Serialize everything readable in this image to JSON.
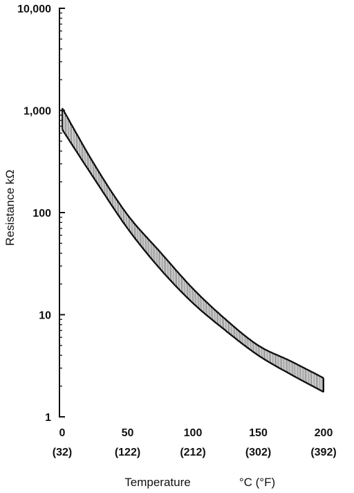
{
  "chart_data": {
    "type": "area",
    "scale": {
      "y": "log"
    },
    "xlim": [
      0,
      200
    ],
    "ylim": [
      1,
      10000
    ],
    "grid": false,
    "xlabel": "Temperature",
    "xunit": "°C (°F)",
    "ylabel": "Resistance kΩ",
    "x_ticks": [
      {
        "c": "0",
        "f": "(32)"
      },
      {
        "c": "50",
        "f": "(122)"
      },
      {
        "c": "100",
        "f": "(212)"
      },
      {
        "c": "150",
        "f": "(302)"
      },
      {
        "c": "200",
        "f": "(392)"
      }
    ],
    "y_ticks": [
      {
        "value": 1,
        "label": "1"
      },
      {
        "value": 10,
        "label": "10"
      },
      {
        "value": 100,
        "label": "100"
      },
      {
        "value": 1000,
        "label": "1,000"
      },
      {
        "value": 10000,
        "label": "10,000"
      }
    ],
    "band": {
      "x": [
        0,
        25,
        50,
        75,
        100,
        125,
        150,
        175,
        200
      ],
      "upper": [
        1050,
        290,
        95,
        41,
        18,
        9,
        5,
        3.5,
        2.4
      ],
      "lower": [
        650,
        210,
        70,
        28,
        13,
        7,
        4,
        2.6,
        1.75
      ]
    },
    "colors": {
      "ink": "#111111",
      "hatch": "#333333"
    }
  }
}
